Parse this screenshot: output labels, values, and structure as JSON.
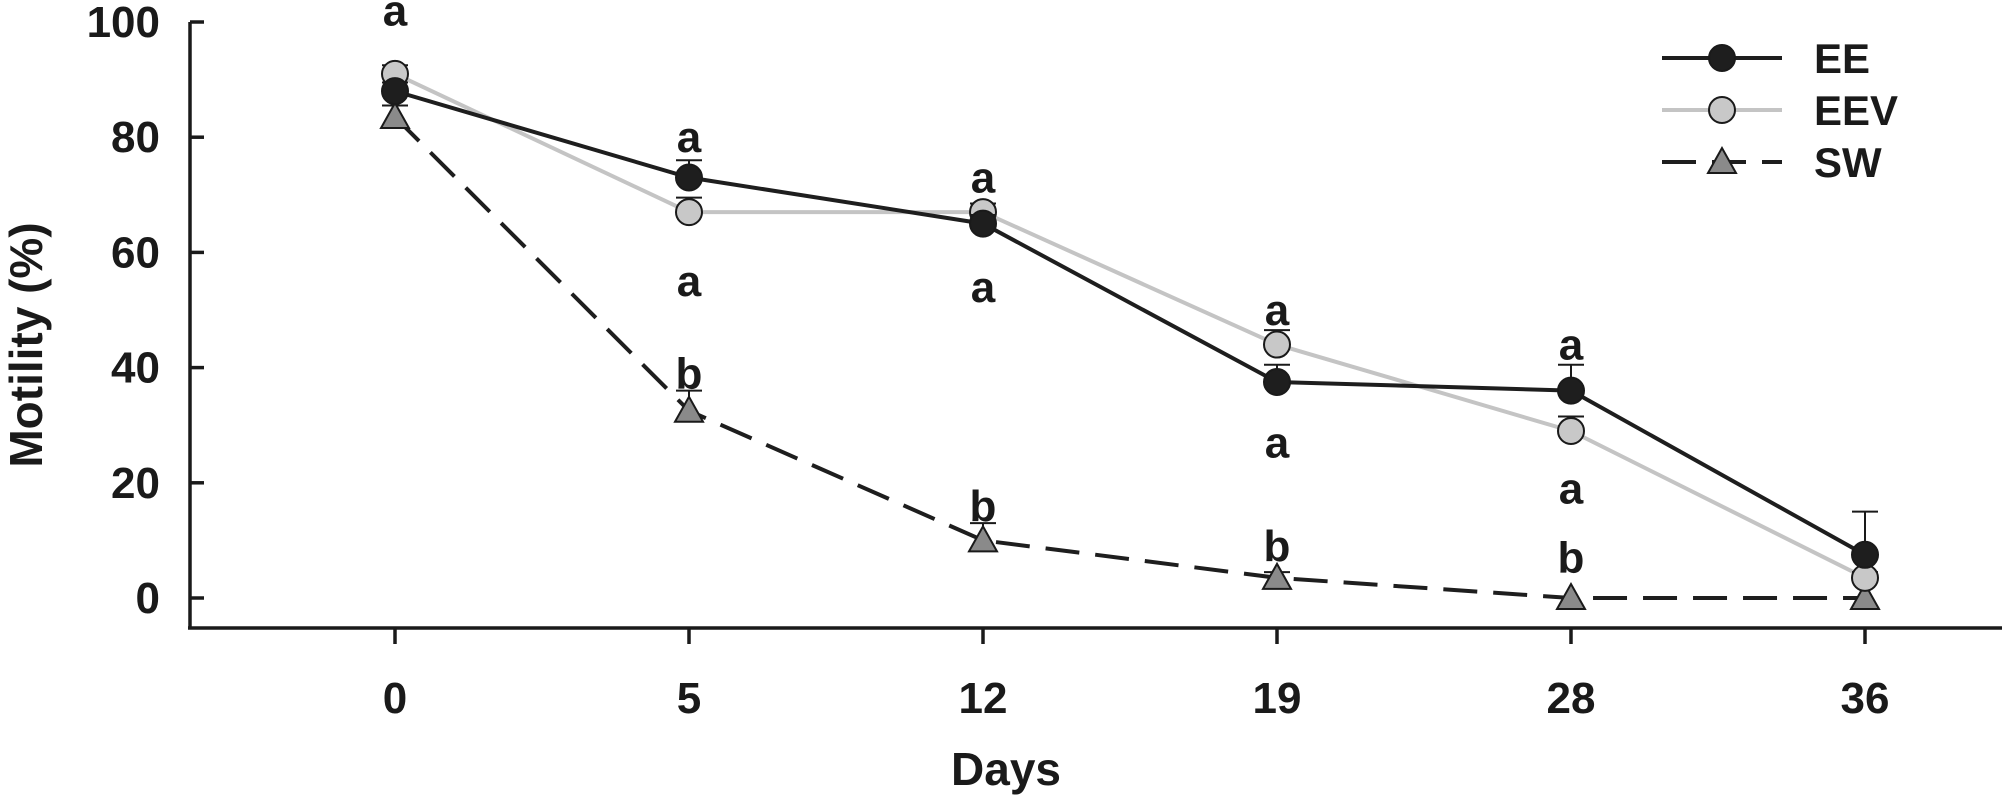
{
  "chart_data": {
    "type": "line",
    "xlabel": "Days",
    "ylabel": "Motility (%)",
    "categories": [
      "0",
      "5",
      "12",
      "19",
      "28",
      "36"
    ],
    "ylim": [
      0,
      100
    ],
    "yticks": [
      0,
      20,
      40,
      60,
      80,
      100
    ],
    "grid": false,
    "legend_position": "top-right",
    "series": [
      {
        "name": "EE",
        "values": [
          88,
          73,
          65,
          37.5,
          36,
          7.5
        ],
        "error": [
          1.5,
          3,
          1.5,
          3,
          4.5,
          7.5
        ],
        "line_style": "solid",
        "line_color": "#1e1e1e",
        "marker": "circle",
        "marker_fill": "#1e1e1e"
      },
      {
        "name": "EEV",
        "values": [
          91,
          67,
          67,
          44,
          29,
          3.5
        ],
        "error": [
          1.5,
          2.5,
          1.5,
          2.5,
          2.5,
          1
        ],
        "line_style": "solid",
        "line_color": "#c4c4c4",
        "marker": "circle",
        "marker_fill": "#c8c8c8"
      },
      {
        "name": "SW",
        "values": [
          83.5,
          32.5,
          10,
          3.5,
          0,
          0
        ],
        "error": [
          2,
          3.5,
          3,
          1,
          0,
          0
        ],
        "line_style": "dashed",
        "line_color": "#1e1e1e",
        "marker": "triangle",
        "marker_fill": "#8a8a8a"
      }
    ],
    "annotations": [
      {
        "text": "a",
        "x": "0",
        "y": 102
      },
      {
        "text": "a",
        "x": "5",
        "y": 80
      },
      {
        "text": "a",
        "x": "5",
        "y": 55
      },
      {
        "text": "b",
        "x": "5",
        "y": 39
      },
      {
        "text": "a",
        "x": "12",
        "y": 73
      },
      {
        "text": "a",
        "x": "12",
        "y": 54
      },
      {
        "text": "b",
        "x": "12",
        "y": 16
      },
      {
        "text": "a",
        "x": "19",
        "y": 50
      },
      {
        "text": "a",
        "x": "19",
        "y": 27
      },
      {
        "text": "b",
        "x": "19",
        "y": 9
      },
      {
        "text": "a",
        "x": "28",
        "y": 44
      },
      {
        "text": "a",
        "x": "28",
        "y": 19
      },
      {
        "text": "b",
        "x": "28",
        "y": 7
      }
    ]
  }
}
